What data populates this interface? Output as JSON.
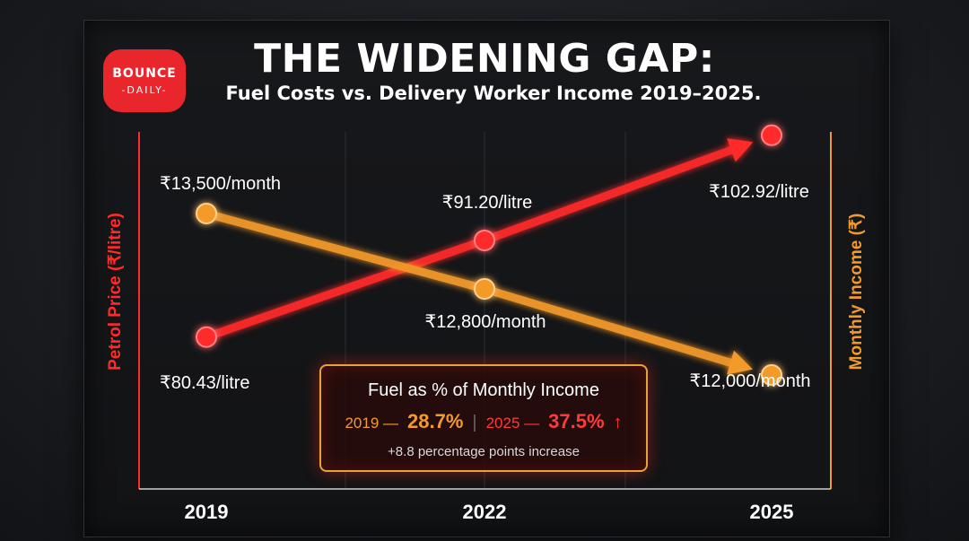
{
  "logo": {
    "line1": "BOUNCE",
    "line2": "-DAILY-"
  },
  "chart_data": {
    "type": "line",
    "title": "THE WIDENING GAP:",
    "subtitle": "Fuel Costs vs. Delivery Worker Income 2019–2025.",
    "categories": [
      "2019",
      "2022",
      "2025"
    ],
    "ylabel_left": "Petrol Price (₹/litre)",
    "ylabel_right": "Monthly Income (₹)",
    "series": [
      {
        "name": "Petrol Price",
        "axis": "left",
        "color": "#ff2b2b",
        "values": [
          80.43,
          91.2,
          102.92
        ],
        "labels": [
          "₹80.43/litre",
          "₹91.20/litre",
          "₹102.92/litre"
        ]
      },
      {
        "name": "Monthly Income",
        "axis": "right",
        "color": "#f39a2a",
        "values": [
          13500,
          12800,
          12000
        ],
        "labels": [
          "₹13,500/month",
          "₹12,800/month",
          "₹12,000/month"
        ]
      }
    ],
    "ylim_left": [
      75,
      105
    ],
    "ylim_right": [
      11900,
      14400
    ],
    "grid": true
  },
  "callout": {
    "title": "Fuel as % of Monthly Income",
    "year1": "2019 —",
    "value1": "28.7%",
    "year2": "2025 —",
    "value2": "37.5%",
    "arrow": "↑",
    "footnote": "+8.8 percentage points increase"
  },
  "colors": {
    "fuel": "#ff2b2b",
    "income": "#f39a2a"
  }
}
